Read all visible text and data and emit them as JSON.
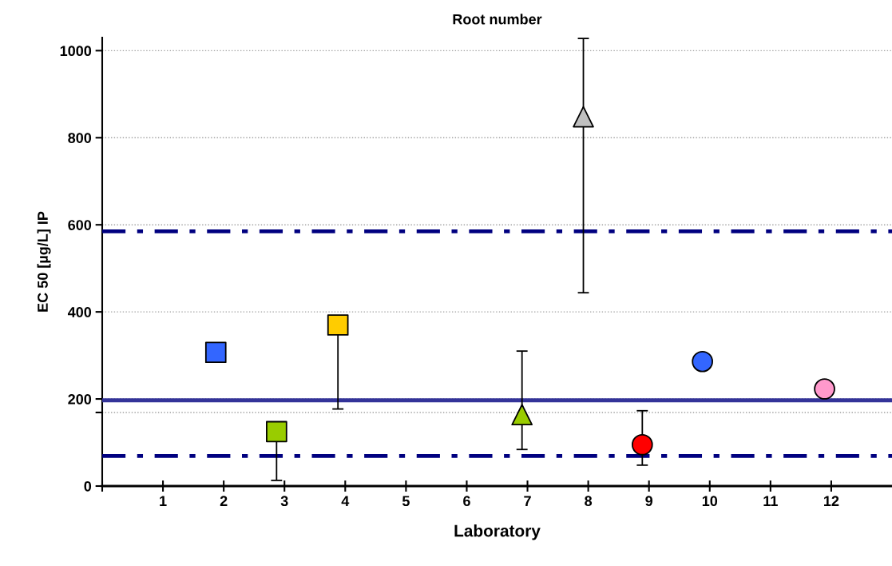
{
  "chart_data": {
    "type": "scatter",
    "title": "Root number",
    "xlabel": "Laboratory",
    "ylabel": "EC 50 [µg/L] IP",
    "xlim": [
      0,
      13
    ],
    "xticks": [
      {
        "value": 0,
        "label": null
      },
      1,
      2,
      3,
      4,
      5,
      6,
      7,
      8,
      9,
      10,
      11,
      12
    ],
    "ylim": [
      0,
      1030
    ],
    "yticks": [
      0,
      {
        "value": 169,
        "label": null
      },
      200,
      400,
      600,
      800,
      1000
    ],
    "grid": "y",
    "legend": false,
    "series": [
      {
        "x": [
          1.87
        ],
        "values": [
          307
        ],
        "color": "#3366ff",
        "marker": "square"
      },
      {
        "x": [
          2.87
        ],
        "values": [
          125
        ],
        "color": "#99cc00",
        "marker": "square",
        "errors": [
          [
            13,
            125
          ]
        ]
      },
      {
        "x": [
          3.88
        ],
        "values": [
          370
        ],
        "color": "#ffcc00",
        "marker": "square",
        "errors": [
          [
            177,
            370
          ]
        ]
      },
      {
        "x": [
          6.91
        ],
        "values": [
          164
        ],
        "color": "#99cc00",
        "marker": "triangle",
        "errors": [
          [
            84,
            310
          ]
        ]
      },
      {
        "x": [
          7.92
        ],
        "values": [
          848
        ],
        "color": "#c0c0c0",
        "marker": "triangle",
        "errors": [
          [
            444,
            1028
          ]
        ]
      },
      {
        "x": [
          8.89
        ],
        "values": [
          95
        ],
        "color": "#ff0000",
        "marker": "circle",
        "errors": [
          [
            48,
            173
          ]
        ]
      },
      {
        "x": [
          9.88
        ],
        "values": [
          286
        ],
        "color": "#3366ff",
        "marker": "circle"
      },
      {
        "x": [
          11.89
        ],
        "values": [
          223
        ],
        "color": "#ff99cc",
        "marker": "circle"
      }
    ],
    "ref_lines": [
      {
        "axis": "y",
        "value": 197,
        "color": "#333399",
        "line_style": "solid"
      },
      {
        "axis": "y",
        "value": 585,
        "color": "#000080",
        "line_style": "dashdot"
      },
      {
        "axis": "y",
        "value": 69,
        "color": "#000080",
        "line_style": "dashdot"
      }
    ]
  }
}
